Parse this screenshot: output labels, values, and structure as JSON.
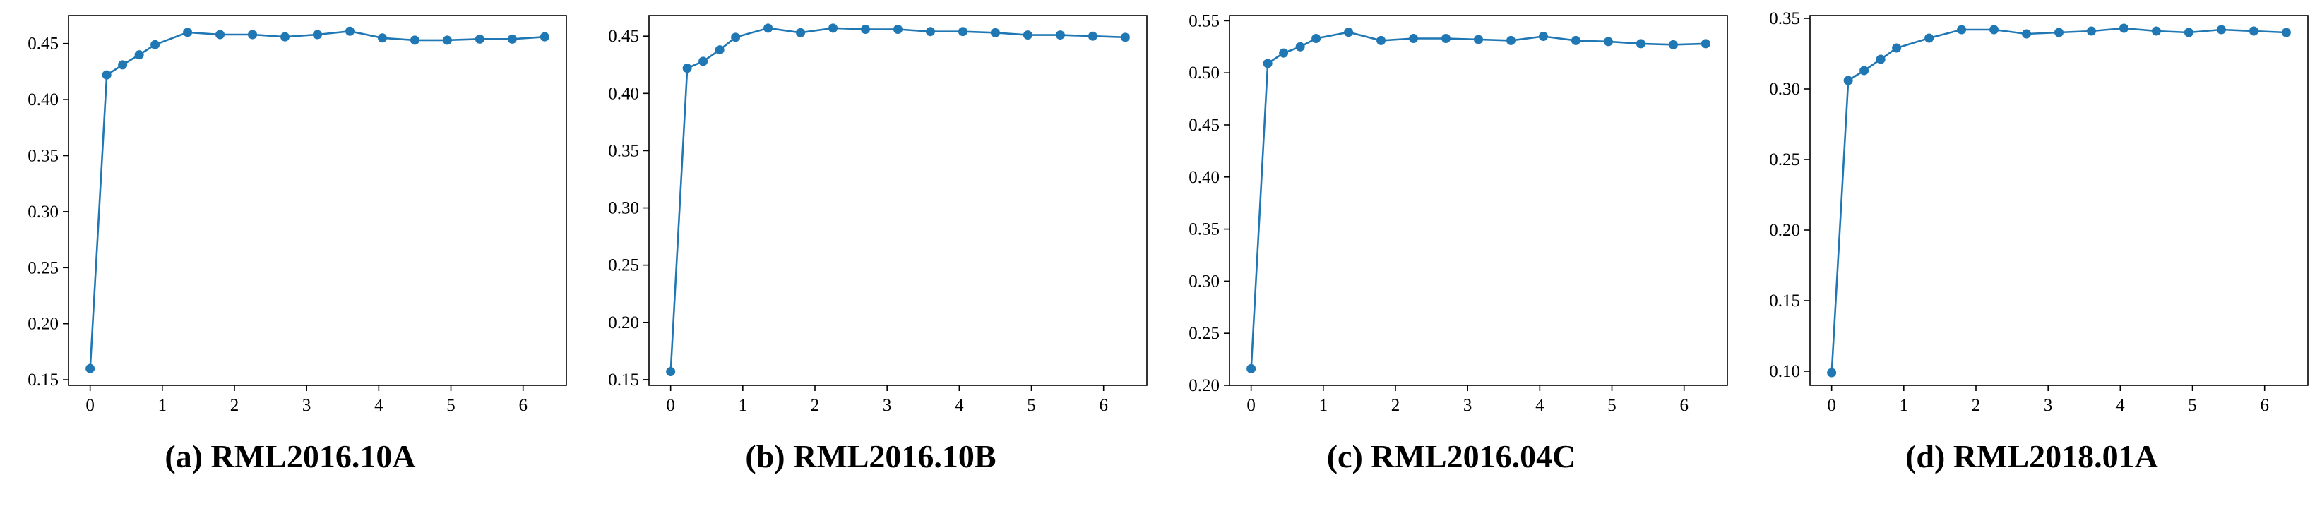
{
  "style": {
    "line_color": "#1f77b4",
    "marker_color": "#1f77b4",
    "axis_color": "#000000"
  },
  "chart_data": [
    {
      "type": "line",
      "caption": "(a) RML2016.10A",
      "xlim": [
        -0.3,
        6.6
      ],
      "ylim": [
        0.145,
        0.475
      ],
      "xticks": [
        0,
        1,
        2,
        3,
        4,
        5,
        6
      ],
      "yticks": [
        0.15,
        0.2,
        0.25,
        0.3,
        0.35,
        0.4,
        0.45
      ],
      "ytick_decimals": 2,
      "x": [
        0,
        0.23,
        0.45,
        0.68,
        0.9,
        1.35,
        1.8,
        2.25,
        2.7,
        3.15,
        3.6,
        4.05,
        4.5,
        4.95,
        5.4,
        5.85,
        6.3
      ],
      "y": [
        0.16,
        0.422,
        0.431,
        0.44,
        0.449,
        0.46,
        0.458,
        0.458,
        0.456,
        0.458,
        0.461,
        0.455,
        0.453,
        0.453,
        0.454,
        0.454,
        0.456
      ]
    },
    {
      "type": "line",
      "caption": "(b) RML2016.10B",
      "xlim": [
        -0.3,
        6.6
      ],
      "ylim": [
        0.145,
        0.468
      ],
      "xticks": [
        0,
        1,
        2,
        3,
        4,
        5,
        6
      ],
      "yticks": [
        0.15,
        0.2,
        0.25,
        0.3,
        0.35,
        0.4,
        0.45
      ],
      "ytick_decimals": 2,
      "x": [
        0,
        0.23,
        0.45,
        0.68,
        0.9,
        1.35,
        1.8,
        2.25,
        2.7,
        3.15,
        3.6,
        4.05,
        4.5,
        4.95,
        5.4,
        5.85,
        6.3
      ],
      "y": [
        0.157,
        0.422,
        0.428,
        0.438,
        0.449,
        0.457,
        0.453,
        0.457,
        0.456,
        0.456,
        0.454,
        0.454,
        0.453,
        0.451,
        0.451,
        0.45,
        0.449
      ]
    },
    {
      "type": "line",
      "caption": "(c) RML2016.04C",
      "xlim": [
        -0.3,
        6.6
      ],
      "ylim": [
        0.2,
        0.555
      ],
      "xticks": [
        0,
        1,
        2,
        3,
        4,
        5,
        6
      ],
      "yticks": [
        0.2,
        0.25,
        0.3,
        0.35,
        0.4,
        0.45,
        0.5,
        0.55
      ],
      "ytick_decimals": 2,
      "x": [
        0,
        0.23,
        0.45,
        0.68,
        0.9,
        1.35,
        1.8,
        2.25,
        2.7,
        3.15,
        3.6,
        4.05,
        4.5,
        4.95,
        5.4,
        5.85,
        6.3
      ],
      "y": [
        0.216,
        0.509,
        0.519,
        0.525,
        0.533,
        0.539,
        0.531,
        0.533,
        0.533,
        0.532,
        0.531,
        0.535,
        0.531,
        0.53,
        0.528,
        0.527,
        0.528
      ]
    },
    {
      "type": "line",
      "caption": "(d) RML2018.01A",
      "xlim": [
        -0.3,
        6.6
      ],
      "ylim": [
        0.09,
        0.352
      ],
      "xticks": [
        0,
        1,
        2,
        3,
        4,
        5,
        6
      ],
      "yticks": [
        0.1,
        0.15,
        0.2,
        0.25,
        0.3,
        0.35
      ],
      "ytick_decimals": 2,
      "x": [
        0,
        0.23,
        0.45,
        0.68,
        0.9,
        1.35,
        1.8,
        2.25,
        2.7,
        3.15,
        3.6,
        4.05,
        4.5,
        4.95,
        5.4,
        5.85,
        6.3
      ],
      "y": [
        0.099,
        0.306,
        0.313,
        0.321,
        0.329,
        0.336,
        0.342,
        0.342,
        0.339,
        0.34,
        0.341,
        0.343,
        0.341,
        0.34,
        0.342,
        0.341,
        0.34
      ]
    }
  ]
}
